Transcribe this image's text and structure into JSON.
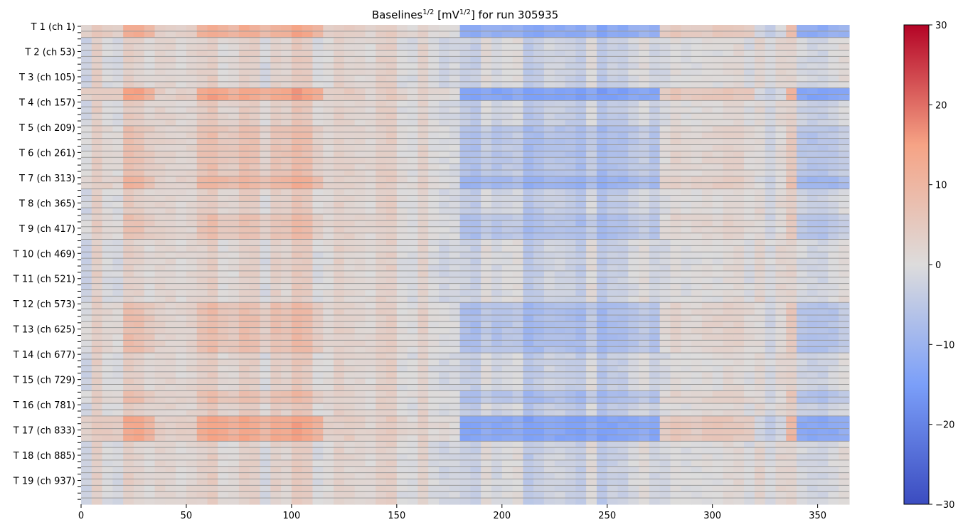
{
  "chart_data": {
    "type": "heatmap",
    "title": {
      "prefix": "Baselines",
      "sup1": "1/2",
      "mid": " [mV",
      "sup2": "1/2",
      "suffix": "] for run 305935"
    },
    "x_ticks": [
      0,
      50,
      100,
      150,
      200,
      250,
      300,
      350
    ],
    "x_range": [
      0,
      365
    ],
    "x_bin": 5,
    "n_rows": 76,
    "y_tick_labels": [
      "T 1 (ch 1)",
      "T 2 (ch 53)",
      "T 3 (ch 105)",
      "T 4 (ch 157)",
      "T 5 (ch 209)",
      "T 6 (ch 261)",
      "T 7 (ch 313)",
      "T 8 (ch 365)",
      "T 9 (ch 417)",
      "T 10 (ch 469)",
      "T 11 (ch 521)",
      "T 12 (ch 573)",
      "T 13 (ch 625)",
      "T 14 (ch 677)",
      "T 15 (ch 729)",
      "T 16 (ch 781)",
      "T 17 (ch 833)",
      "T 18 (ch 885)",
      "T 19 (ch 937)"
    ],
    "colorbar": {
      "vmin": -30,
      "vmax": 30,
      "ticks": [
        30,
        20,
        10,
        0,
        -10,
        -20,
        -30
      ],
      "colormap": "coolwarm"
    },
    "column_profile": [
      5,
      4,
      6,
      5,
      14,
      15,
      12,
      3,
      2,
      4,
      3,
      13,
      14,
      15,
      12,
      14,
      13,
      12,
      13,
      14,
      15,
      14,
      13,
      3,
      2,
      4,
      3,
      2,
      3,
      4,
      3,
      2,
      3,
      2,
      3,
      1,
      -14,
      -14,
      -14,
      -14,
      -14,
      -14,
      -14,
      -14,
      -14,
      -14,
      -14,
      -14,
      -14,
      -14,
      -14,
      -14,
      -14,
      -14,
      -14,
      6,
      7,
      6,
      5,
      6,
      7,
      6,
      5,
      6,
      -3,
      -4,
      -3,
      10,
      -14,
      -14,
      -14,
      -14,
      -14
    ],
    "row_gain": [
      0.85,
      0.85,
      0.15,
      0.15,
      0.15,
      0.15,
      0.15,
      0.15,
      0.15,
      0.15,
      1.0,
      1.0,
      0.25,
      0.25,
      0.25,
      0.25,
      0.45,
      0.45,
      0.45,
      0.45,
      0.45,
      0.45,
      0.45,
      0.45,
      0.7,
      0.7,
      0.25,
      0.25,
      0.25,
      0.25,
      0.45,
      0.45,
      0.45,
      0.45,
      0.15,
      0.15,
      0.15,
      0.15,
      0.15,
      0.15,
      0.15,
      0.15,
      0.15,
      0.15,
      0.5,
      0.5,
      0.5,
      0.5,
      0.5,
      0.5,
      0.5,
      0.5,
      0.2,
      0.2,
      0.2,
      0.2,
      0.2,
      0.2,
      0.5,
      0.5,
      0.25,
      0.25,
      0.95,
      0.95,
      0.95,
      0.95,
      0.15,
      0.15,
      0.15,
      0.15,
      0.15,
      0.15,
      0.15,
      0.15,
      0.15,
      0.15
    ]
  }
}
